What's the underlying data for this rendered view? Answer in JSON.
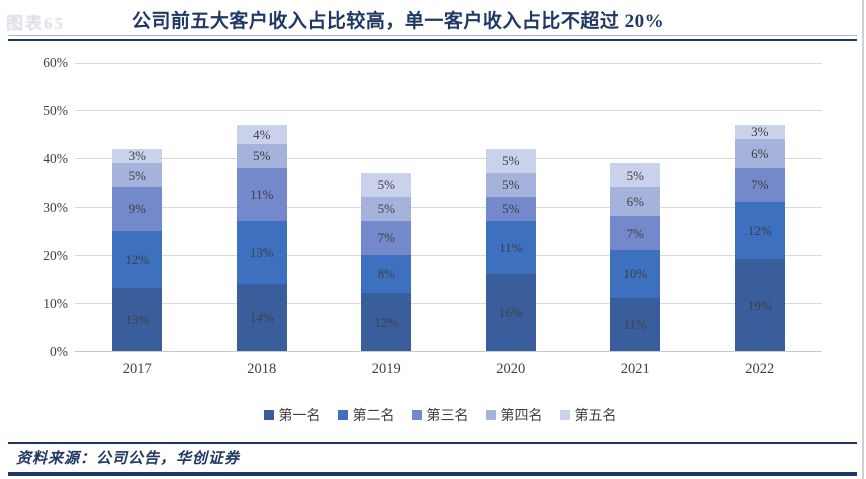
{
  "watermark": "图表65",
  "title": "公司前五大客户收入占比较高，单一客户收入占比不超过 20%",
  "source": "资料来源：公司公告，华创证券",
  "colors": {
    "title_navy": "#1F3864",
    "gridline": "#D9D9D9",
    "label_gray": "#404040"
  },
  "chart_data": {
    "type": "bar",
    "stacked": true,
    "title": "公司前五大客户收入占比较高，单一客户收入占比不超过 20%",
    "categories": [
      "2017",
      "2018",
      "2019",
      "2020",
      "2021",
      "2022"
    ],
    "series": [
      {
        "name": "第一名",
        "color": "#3A5E9C",
        "values": [
          13,
          14,
          12,
          16,
          11,
          19
        ]
      },
      {
        "name": "第二名",
        "color": "#3D71BF",
        "values": [
          12,
          13,
          8,
          11,
          10,
          12
        ]
      },
      {
        "name": "第三名",
        "color": "#7389CB",
        "values": [
          9,
          11,
          7,
          5,
          7,
          7
        ]
      },
      {
        "name": "第四名",
        "color": "#A5B2DB",
        "values": [
          5,
          5,
          5,
          5,
          6,
          6
        ]
      },
      {
        "name": "第五名",
        "color": "#C9D2EA",
        "values": [
          3,
          4,
          5,
          5,
          5,
          3
        ]
      }
    ],
    "totals": [
      42,
      47,
      37,
      42,
      38,
      47
    ],
    "value_suffix": "%",
    "xlabel": "",
    "ylabel": "",
    "ylim": [
      0,
      60
    ],
    "yticks": [
      "0%",
      "10%",
      "20%",
      "30%",
      "40%",
      "50%",
      "60%"
    ],
    "grid": true,
    "legend_position": "bottom",
    "data_labels": "inside-center"
  }
}
